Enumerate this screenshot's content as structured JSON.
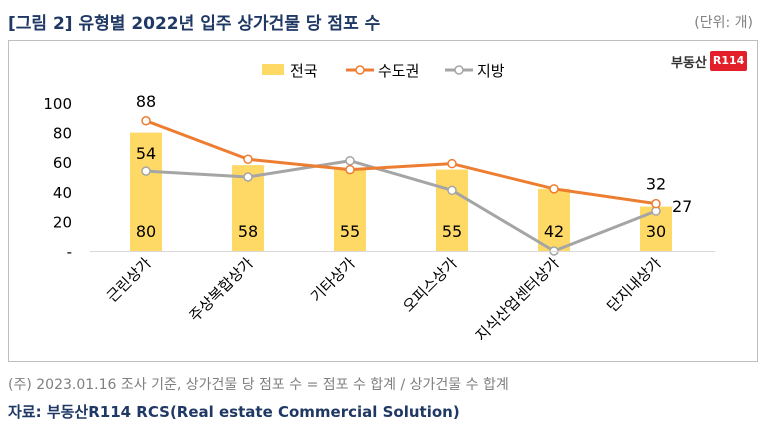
{
  "header": {
    "title": "[그림 2] 유형별 2022년 입주 상가건물 당 점포 수",
    "unit": "(단위: 개)"
  },
  "logo": {
    "text": "부동산",
    "badge": "R114"
  },
  "footer": {
    "note": "(주) 2023.01.16 조사 기준, 상가건물 당 점포 수 = 점포 수 합계 / 상가건물 수 합계",
    "source": "자료: 부동산R114 RCS(Real estate Commercial Solution)"
  },
  "colors": {
    "bar": "#FFD966",
    "capital": "#ED7D31",
    "local": "#A5A5A5",
    "title": "#1F3864"
  },
  "chart_data": {
    "type": "bar",
    "categories": [
      "근린상가",
      "주상복합상가",
      "기타상가",
      "오피스상가",
      "지식산업센터상가",
      "단지내상가"
    ],
    "series": [
      {
        "name": "전국",
        "type": "bar",
        "values": [
          80,
          58,
          55,
          55,
          42,
          30
        ]
      },
      {
        "name": "수도권",
        "type": "line",
        "values": [
          88,
          62,
          55,
          59,
          42,
          32
        ]
      },
      {
        "name": "지방",
        "type": "line",
        "values": [
          54,
          50,
          61,
          41,
          0,
          27
        ]
      }
    ],
    "labeled": {
      "전국": [
        0,
        1,
        2,
        3,
        4,
        5
      ],
      "수도권": [
        0,
        5
      ],
      "지방": [
        0,
        5
      ]
    },
    "y_ticks": [
      "-",
      "20",
      "40",
      "60",
      "80",
      "100"
    ],
    "ylim": [
      0,
      100
    ],
    "legend": "top-center",
    "grid": false
  }
}
